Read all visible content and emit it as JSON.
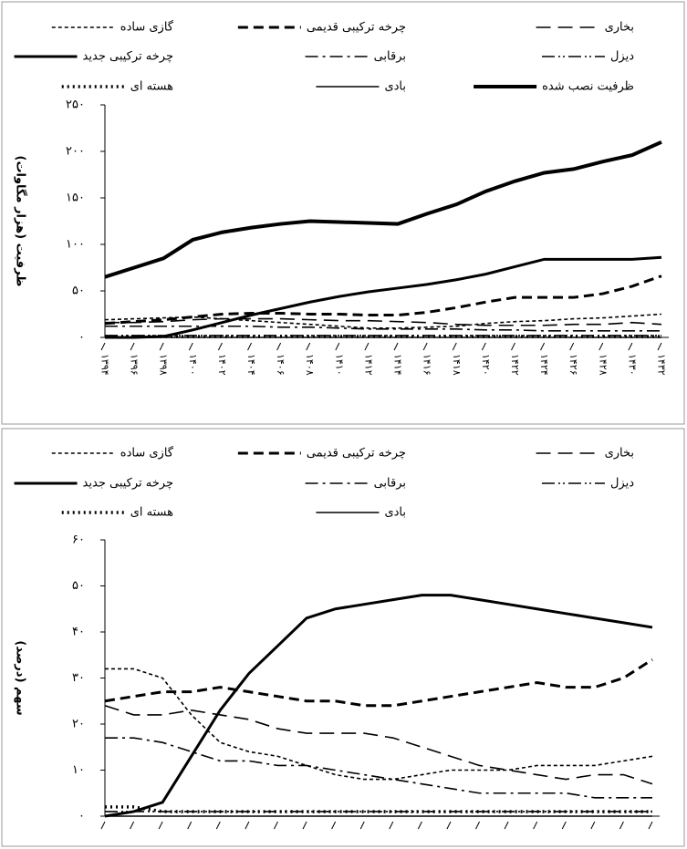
{
  "chart_data": [
    {
      "type": "line",
      "y_label": "ظرفیت (هزار مگاوات)",
      "categories": [
        "۱۳۹۴",
        "۱۳۹۶",
        "۱۳۹۸",
        "۱۴۰۰",
        "۱۴۰۲",
        "۱۴۰۴",
        "۱۴۰۶",
        "۱۴۰۸",
        "۱۴۱۰",
        "۱۴۱۲",
        "۱۴۱۴",
        "۱۴۱۶",
        "۱۴۱۸",
        "۱۴۲۰",
        "۱۴۲۲",
        "۱۴۲۴",
        "۱۴۲۶",
        "۱۴۲۸",
        "۱۴۳۰",
        "۱۴۳۲"
      ],
      "ylim": [
        0,
        250
      ],
      "yticks": [
        {
          "value": 0,
          "label": "۰"
        },
        {
          "value": 50,
          "label": "۵۰"
        },
        {
          "value": 100,
          "label": "۱۰۰"
        },
        {
          "value": 150,
          "label": "۱۵۰"
        },
        {
          "value": 200,
          "label": "۲۰۰"
        },
        {
          "value": 250,
          "label": "۲۵۰"
        }
      ],
      "series": [
        {
          "name": "گازی ساده",
          "color": "#000",
          "values": [
            19,
            20,
            21,
            22,
            20,
            18,
            16,
            14,
            12,
            10,
            10,
            11,
            12,
            15,
            17,
            18,
            20,
            21,
            23,
            25
          ]
        },
        {
          "name": "چرخه ترکیبی قدیمی",
          "color": "#000",
          "values": [
            15,
            17,
            19,
            22,
            25,
            26,
            26,
            25,
            25,
            24,
            24,
            27,
            32,
            38,
            43,
            43,
            43,
            47,
            55,
            66
          ]
        },
        {
          "name": "بخاری",
          "color": "#000",
          "values": [
            16,
            16,
            17,
            19,
            20,
            20,
            20,
            19,
            18,
            18,
            17,
            16,
            14,
            13,
            13,
            13,
            14,
            14,
            16,
            14
          ]
        },
        {
          "name": "چرخه ترکیبی جدید",
          "color": "#000",
          "values": [
            0,
            0,
            1,
            8,
            16,
            24,
            31,
            38,
            44,
            49,
            53,
            57,
            62,
            68,
            76,
            84,
            84,
            84,
            84,
            86
          ]
        },
        {
          "name": "برقابی",
          "color": "#000",
          "values": [
            12,
            12,
            12,
            12,
            12,
            12,
            11,
            11,
            10,
            9,
            9,
            9,
            9,
            8,
            8,
            7,
            7,
            7,
            7,
            7
          ]
        },
        {
          "name": "دیزل",
          "color": "#000",
          "values": [
            2,
            2,
            2,
            2,
            2,
            2,
            2,
            2,
            2,
            2,
            2,
            2,
            2,
            2,
            2,
            2,
            2,
            2,
            2,
            2
          ]
        },
        {
          "name": "هسته ای",
          "color": "#000",
          "values": [
            1,
            1,
            1,
            1,
            1,
            1,
            1,
            1,
            1,
            1,
            1,
            1,
            1,
            1,
            1,
            1,
            1,
            1,
            1,
            1
          ]
        },
        {
          "name": "بادی",
          "color": "#000",
          "values": [
            0,
            0,
            0,
            0,
            0,
            0,
            0,
            0,
            0,
            0,
            0,
            0,
            0,
            0,
            0,
            0,
            0,
            0,
            0,
            0
          ]
        },
        {
          "name": "ظرفیت نصب شده",
          "color": "#000",
          "values": [
            65,
            75,
            85,
            105,
            113,
            118,
            122,
            125,
            124,
            123,
            122,
            133,
            143,
            157,
            168,
            177,
            181,
            189,
            196,
            210
          ]
        }
      ]
    },
    {
      "type": "line",
      "y_label": "سهم (درصد)",
      "categories": [
        null,
        null,
        null,
        null,
        null,
        null,
        null,
        null,
        null,
        null,
        null,
        null,
        null,
        null,
        null,
        null,
        null,
        null,
        null,
        null
      ],
      "ylim": [
        0,
        60
      ],
      "yticks": [
        {
          "value": 0,
          "label": "۰"
        },
        {
          "value": 10,
          "label": "۱۰"
        },
        {
          "value": 20,
          "label": "۲۰"
        },
        {
          "value": 30,
          "label": "۳۰"
        },
        {
          "value": 40,
          "label": "۴۰"
        },
        {
          "value": 50,
          "label": "۵۰"
        },
        {
          "value": 60,
          "label": "۶۰"
        }
      ],
      "series": [
        {
          "name": "گازی ساده",
          "color": "#000",
          "values": [
            32,
            32,
            30,
            22,
            16,
            14,
            13,
            11,
            9,
            8,
            8,
            9,
            10,
            10,
            10,
            11,
            11,
            11,
            12,
            13
          ]
        },
        {
          "name": "چرخه ترکیبی قدیمی",
          "color": "#000",
          "values": [
            25,
            26,
            27,
            27,
            28,
            27,
            26,
            25,
            25,
            24,
            24,
            25,
            26,
            27,
            28,
            29,
            28,
            28,
            30,
            34
          ]
        },
        {
          "name": "بخاری",
          "color": "#000",
          "values": [
            24,
            22,
            22,
            23,
            22,
            21,
            19,
            18,
            18,
            18,
            17,
            15,
            13,
            11,
            10,
            9,
            8,
            9,
            9,
            7
          ]
        },
        {
          "name": "چرخه ترکیبی جدید",
          "color": "#000",
          "values": [
            0,
            1,
            3,
            13,
            23,
            31,
            37,
            43,
            45,
            46,
            47,
            48,
            48,
            47,
            46,
            45,
            44,
            43,
            42,
            41
          ]
        },
        {
          "name": "برقابی",
          "color": "#000",
          "values": [
            17,
            17,
            16,
            14,
            12,
            12,
            11,
            11,
            10,
            9,
            8,
            7,
            6,
            5,
            5,
            5,
            5,
            4,
            4,
            4
          ]
        },
        {
          "name": "دیزل",
          "color": "#000",
          "values": [
            1,
            1,
            1,
            1,
            1,
            1,
            1,
            1,
            1,
            1,
            1,
            1,
            1,
            1,
            1,
            1,
            1,
            1,
            1,
            1
          ]
        },
        {
          "name": "هسته ای",
          "color": "#000",
          "values": [
            2,
            2,
            1,
            1,
            1,
            1,
            1,
            1,
            1,
            1,
            1,
            1,
            1,
            1,
            1,
            1,
            1,
            1,
            1,
            1
          ]
        },
        {
          "name": "بادی",
          "color": "#000",
          "values": [
            0,
            0,
            0,
            0,
            0,
            0,
            0,
            0,
            0,
            0,
            0,
            0,
            0,
            0,
            0,
            0,
            0,
            0,
            0,
            0
          ]
        }
      ]
    }
  ]
}
